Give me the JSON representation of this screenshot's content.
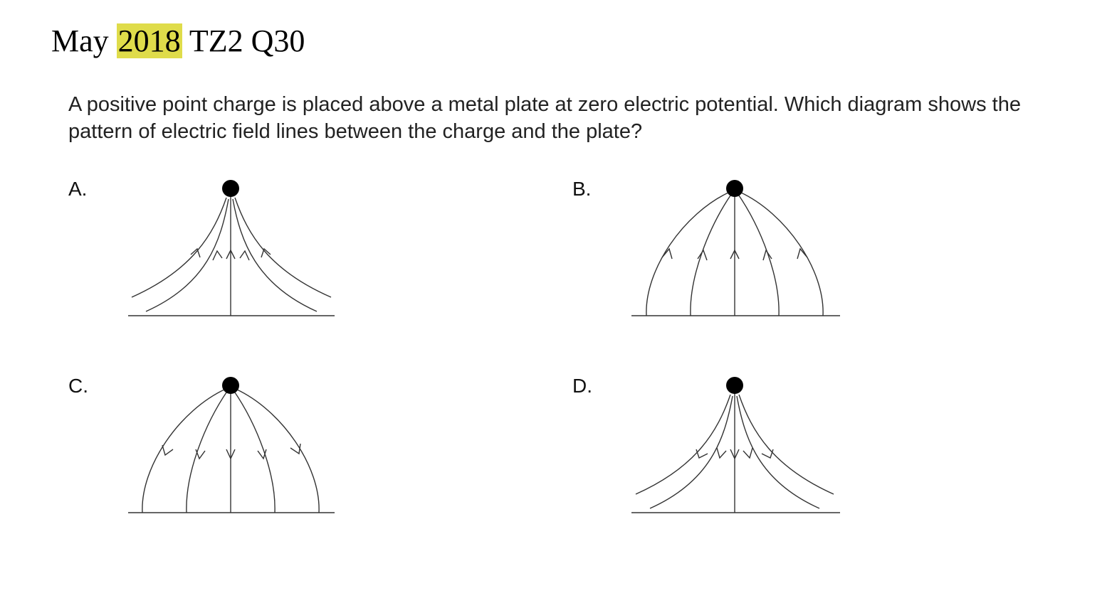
{
  "heading": {
    "prefix": "May",
    "highlighted_year": "2018",
    "suffix": "TZ2 Q30",
    "highlight_color": "#dfdc4a"
  },
  "question": {
    "text": "A positive point charge is placed above a metal plate at zero electric potential.  Which diagram shows the pattern of electric field lines between the charge and the plate?"
  },
  "options": [
    {
      "label": "A.",
      "field_direction": "up",
      "shape": "narrow-spread"
    },
    {
      "label": "B.",
      "field_direction": "up",
      "shape": "wide-arch"
    },
    {
      "label": "C.",
      "field_direction": "down",
      "shape": "wide-arch"
    },
    {
      "label": "D.",
      "field_direction": "down",
      "shape": "narrow-spread"
    }
  ]
}
